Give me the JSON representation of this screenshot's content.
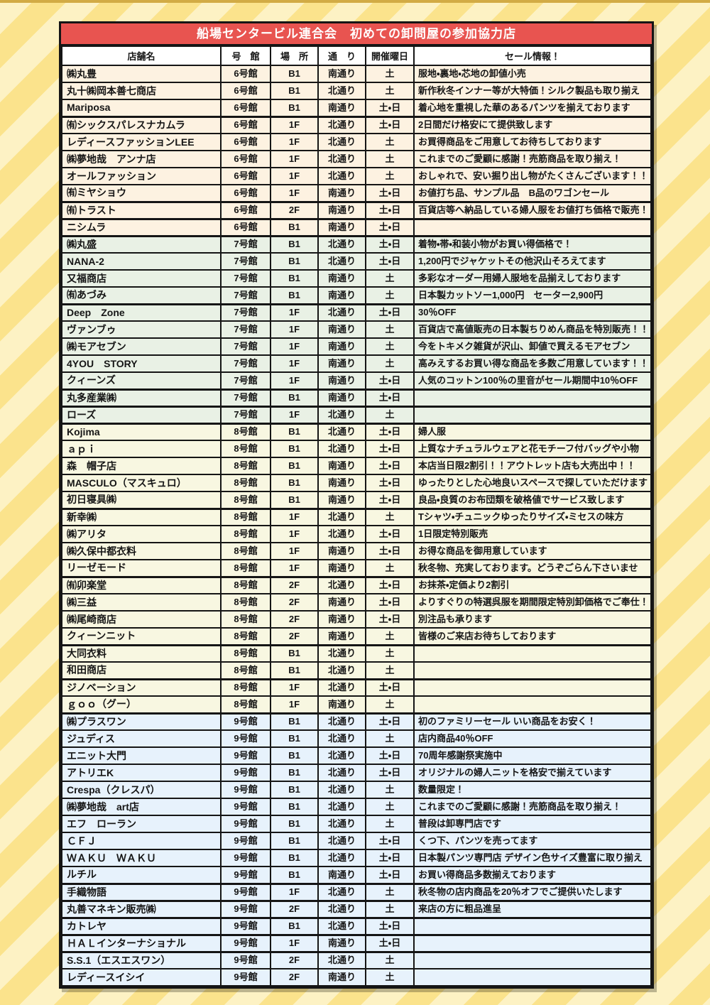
{
  "title": "船場センタービル連合会　初めての卸問屋の参加協力店",
  "columns": [
    {
      "key": "name",
      "label": "店舗名"
    },
    {
      "key": "building",
      "label": "号　館"
    },
    {
      "key": "floor",
      "label": "場　所"
    },
    {
      "key": "street",
      "label": "通　り"
    },
    {
      "key": "days",
      "label": "開催曜日"
    },
    {
      "key": "info",
      "label": "セール情報！"
    }
  ],
  "colors": {
    "title_red": "#e85450",
    "top_strip_gold": "#d2ab45",
    "stripe_light": "#fdf2c4",
    "stripe_dark": "#fbe38c",
    "border_black": "#151515",
    "groups": {
      "6号館": "#fdf2e1",
      "7号館": "#e9f1e5",
      "8号館": "#f8f7e1",
      "9号館": "#e7f2fc"
    }
  },
  "rows": [
    {
      "name": "㈱丸豊",
      "building": "6号館",
      "floor": "B1",
      "street": "南通り",
      "days": "土",
      "info": "服地・裏地・芯地の卸値小売"
    },
    {
      "name": "丸十㈱岡本善七商店",
      "building": "6号館",
      "floor": "B1",
      "street": "北通り",
      "days": "土",
      "info": "新作秋冬インナー等が大特価！シルク製品も取り揃え"
    },
    {
      "name": "Mariposa",
      "building": "6号館",
      "floor": "B1",
      "street": "南通り",
      "days": "土・日",
      "info": "着心地を重視した華のあるパンツを揃えております"
    },
    {
      "name": "㈲シックスパレスナカムラ",
      "building": "6号館",
      "floor": "1F",
      "street": "北通り",
      "days": "土・日",
      "info": "2日間だけ格安にて提供致します"
    },
    {
      "name": "レディースファッションLEE",
      "building": "6号館",
      "floor": "1F",
      "street": "北通り",
      "days": "土",
      "info": "お買得商品をご用意してお待ちしております"
    },
    {
      "name": "㈱夢地哉　アンナ店",
      "building": "6号館",
      "floor": "1F",
      "street": "北通り",
      "days": "土",
      "info": "これまでのご愛顧に感謝！売筋商品を取り揃え！"
    },
    {
      "name": "オールファッション",
      "building": "6号館",
      "floor": "1F",
      "street": "北通り",
      "days": "土",
      "info": "おしゃれで、安い掘り出し物がたくさんございます！！"
    },
    {
      "name": "㈲ミヤショウ",
      "building": "6号館",
      "floor": "1F",
      "street": "南通り",
      "days": "土・日",
      "info": "お値打ち品、サンプル品　B品のワゴンセール"
    },
    {
      "name": "㈲トラスト",
      "building": "6号館",
      "floor": "2F",
      "street": "南通り",
      "days": "土・日",
      "info": "百貨店等へ納品している婦人服をお値打ち価格で販売！"
    },
    {
      "name": "ニシムラ",
      "building": "6号館",
      "floor": "B1",
      "street": "南通り",
      "days": "土・日",
      "info": ""
    },
    {
      "name": "㈱丸盛",
      "building": "7号館",
      "floor": "B1",
      "street": "北通り",
      "days": "土・日",
      "info": "着物・帯・和装小物がお買い得価格で！"
    },
    {
      "name": "NANA-2",
      "building": "7号館",
      "floor": "B1",
      "street": "北通り",
      "days": "土・日",
      "info": "1,200円でジャケットその他沢山そろえてます"
    },
    {
      "name": "又福商店",
      "building": "7号館",
      "floor": "B1",
      "street": "南通り",
      "days": "土",
      "info": "多彩なオーダー用婦人服地を品揃えしております"
    },
    {
      "name": "㈲あづみ",
      "building": "7号館",
      "floor": "B1",
      "street": "南通り",
      "days": "土",
      "info": "日本製カットソー1,000円　セーター2,900円"
    },
    {
      "name": "Deep　Zone",
      "building": "7号館",
      "floor": "1F",
      "street": "北通り",
      "days": "土・日",
      "info": "30％OFF"
    },
    {
      "name": "ヴァンブゥ",
      "building": "7号館",
      "floor": "1F",
      "street": "南通り",
      "days": "土",
      "info": "百貨店で高値販売の日本製ちりめん商品を特別販売！！"
    },
    {
      "name": "㈱モアセブン",
      "building": "7号館",
      "floor": "1F",
      "street": "南通り",
      "days": "土",
      "info": "今をトキメク雑貨が沢山、卸値で買えるモアセブン"
    },
    {
      "name": "4YOU　STORY",
      "building": "7号館",
      "floor": "1F",
      "street": "南通り",
      "days": "土",
      "info": "高みえするお買い得な商品を多数ご用意しています！！"
    },
    {
      "name": "クィーンズ",
      "building": "7号館",
      "floor": "1F",
      "street": "南通り",
      "days": "土・日",
      "info": "人気のコットン100％の里音がセール期間中10％OFF"
    },
    {
      "name": "丸多産業㈱",
      "building": "7号館",
      "floor": "B1",
      "street": "南通り",
      "days": "土・日",
      "info": ""
    },
    {
      "name": "ローズ",
      "building": "7号館",
      "floor": "1F",
      "street": "北通り",
      "days": "土",
      "info": ""
    },
    {
      "name": "Kojima",
      "building": "8号館",
      "floor": "B1",
      "street": "北通り",
      "days": "土・日",
      "info": "婦人服"
    },
    {
      "name": "ａｐｉ",
      "building": "8号館",
      "floor": "B1",
      "street": "北通り",
      "days": "土・日",
      "info": "上質なナチュラルウェアと花モチーフ付バッグや小物"
    },
    {
      "name": "森　帽子店",
      "building": "8号館",
      "floor": "B1",
      "street": "南通り",
      "days": "土・日",
      "info": "本店当日限2割引！！アウトレット店も大売出中！！"
    },
    {
      "name": "MASCULO（マスキュロ）",
      "building": "8号館",
      "floor": "B1",
      "street": "南通り",
      "days": "土・日",
      "info": "ゆったりとした心地良いスペースで探していただけます"
    },
    {
      "name": "初日寝具㈱",
      "building": "8号館",
      "floor": "B1",
      "street": "南通り",
      "days": "土・日",
      "info": "良品・良質のお布団類を破格値でサービス致します"
    },
    {
      "name": "新幸㈱",
      "building": "8号館",
      "floor": "1F",
      "street": "北通り",
      "days": "土",
      "info": "Tシャツ・チュニックゆったりサイズ・ミセスの味方"
    },
    {
      "name": "㈱アリタ",
      "building": "8号館",
      "floor": "1F",
      "street": "北通り",
      "days": "土・日",
      "info": "1日限定特別販売"
    },
    {
      "name": "㈱久保中都衣料",
      "building": "8号館",
      "floor": "1F",
      "street": "南通り",
      "days": "土・日",
      "info": "お得な商品を御用意しています"
    },
    {
      "name": "リーゼモード",
      "building": "8号館",
      "floor": "1F",
      "street": "南通り",
      "days": "土",
      "info": "秋冬物、充実しております。どうぞごらん下さいませ"
    },
    {
      "name": "㈲卯楽堂",
      "building": "8号館",
      "floor": "2F",
      "street": "北通り",
      "days": "土・日",
      "info": "お抹茶・定価より2割引"
    },
    {
      "name": "㈱三益",
      "building": "8号館",
      "floor": "2F",
      "street": "南通り",
      "days": "土・日",
      "info": "よりすぐりの特選呉服を期間限定特別卸価格でご奉仕！"
    },
    {
      "name": "㈱尾崎商店",
      "building": "8号館",
      "floor": "2F",
      "street": "南通り",
      "days": "土・日",
      "info": "別注品も承ります"
    },
    {
      "name": "クィーンニット",
      "building": "8号館",
      "floor": "2F",
      "street": "南通り",
      "days": "土",
      "info": "皆様のご来店お待ちしております"
    },
    {
      "name": "大同衣料",
      "building": "8号館",
      "floor": "B1",
      "street": "北通り",
      "days": "土",
      "info": ""
    },
    {
      "name": "和田商店",
      "building": "8号館",
      "floor": "B1",
      "street": "北通り",
      "days": "土",
      "info": ""
    },
    {
      "name": "ジノベーション",
      "building": "8号館",
      "floor": "1F",
      "street": "北通り",
      "days": "土・日",
      "info": ""
    },
    {
      "name": "ｇｏｏ（グー）",
      "building": "8号館",
      "floor": "1F",
      "street": "南通り",
      "days": "土",
      "info": ""
    },
    {
      "name": "㈱プラスワン",
      "building": "9号館",
      "floor": "B1",
      "street": "北通り",
      "days": "土・日",
      "info": "初のファミリーセール いい商品をお安く！"
    },
    {
      "name": "ジュディス",
      "building": "9号館",
      "floor": "B1",
      "street": "北通り",
      "days": "土",
      "info": "店内商品40％OFF"
    },
    {
      "name": "エニット大門",
      "building": "9号館",
      "floor": "B1",
      "street": "北通り",
      "days": "土・日",
      "info": "70周年感謝祭実施中"
    },
    {
      "name": "アトリエK",
      "building": "9号館",
      "floor": "B1",
      "street": "北通り",
      "days": "土・日",
      "info": "オリジナルの婦人ニットを格安で揃えています"
    },
    {
      "name": "Crespa（クレスパ）",
      "building": "9号館",
      "floor": "B1",
      "street": "北通り",
      "days": "土",
      "info": "数量限定！"
    },
    {
      "name": "㈱夢地哉　art店",
      "building": "9号館",
      "floor": "B1",
      "street": "北通り",
      "days": "土",
      "info": "これまでのご愛顧に感謝！売筋商品を取り揃え！"
    },
    {
      "name": "エフ　ローラン",
      "building": "9号館",
      "floor": "B1",
      "street": "北通り",
      "days": "土",
      "info": "普段は卸専門店です"
    },
    {
      "name": "ＣＦＪ",
      "building": "9号館",
      "floor": "B1",
      "street": "北通り",
      "days": "土・日",
      "info": "くつ下、パンツを売ってます"
    },
    {
      "name": "ＷＡＫＵ　ＷＡＫＵ",
      "building": "9号館",
      "floor": "B1",
      "street": "北通り",
      "days": "土・日",
      "info": "日本製パンツ専門店 デザイン色サイズ豊富に取り揃え"
    },
    {
      "name": "ルチル",
      "building": "9号館",
      "floor": "B1",
      "street": "南通り",
      "days": "土・日",
      "info": "お買い得商品多数揃えております"
    },
    {
      "name": "手織物語",
      "building": "9号館",
      "floor": "1F",
      "street": "北通り",
      "days": "土",
      "info": "秋冬物の店内商品を20％オフでご提供いたします"
    },
    {
      "name": "丸善マネキン販売㈱",
      "building": "9号館",
      "floor": "2F",
      "street": "北通り",
      "days": "土",
      "info": "来店の方に粗品進呈"
    },
    {
      "name": "カトレヤ",
      "building": "9号館",
      "floor": "B1",
      "street": "北通り",
      "days": "土・日",
      "info": ""
    },
    {
      "name": "ＨＡＬインターナショナル",
      "building": "9号館",
      "floor": "1F",
      "street": "南通り",
      "days": "土・日",
      "info": ""
    },
    {
      "name": "S.S.1（エスエスワン）",
      "building": "9号館",
      "floor": "2F",
      "street": "北通り",
      "days": "土",
      "info": ""
    },
    {
      "name": "レディースイシイ",
      "building": "9号館",
      "floor": "2F",
      "street": "南通り",
      "days": "土",
      "info": ""
    }
  ]
}
